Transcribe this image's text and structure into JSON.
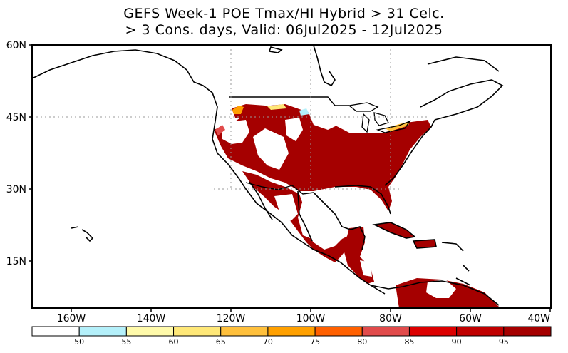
{
  "title": {
    "line1": "GEFS Week-1 POE Tmax/HI Hybrid > 31 Celc.",
    "line2": "> 3 Cons. days, Valid: 06Jul2025 - 12Jul2025"
  },
  "map": {
    "lon_range": [
      -170,
      -40
    ],
    "lat_range": [
      5,
      60
    ],
    "lat_ticks": [
      "60N",
      "45N",
      "30N",
      "15N"
    ],
    "lon_ticks": [
      "160W",
      "140W",
      "120W",
      "100W",
      "80W",
      "60W",
      "40W"
    ]
  },
  "colorbar": {
    "levels": [
      "50",
      "55",
      "60",
      "65",
      "70",
      "75",
      "80",
      "85",
      "90",
      "95"
    ],
    "colors": [
      "#ffffff",
      "#b4f0fa",
      "#fffaaa",
      "#ffe878",
      "#ffc03c",
      "#ffa000",
      "#ff6000",
      "#e14b4b",
      "#dc0000",
      "#c00000",
      "#a50000"
    ]
  }
}
